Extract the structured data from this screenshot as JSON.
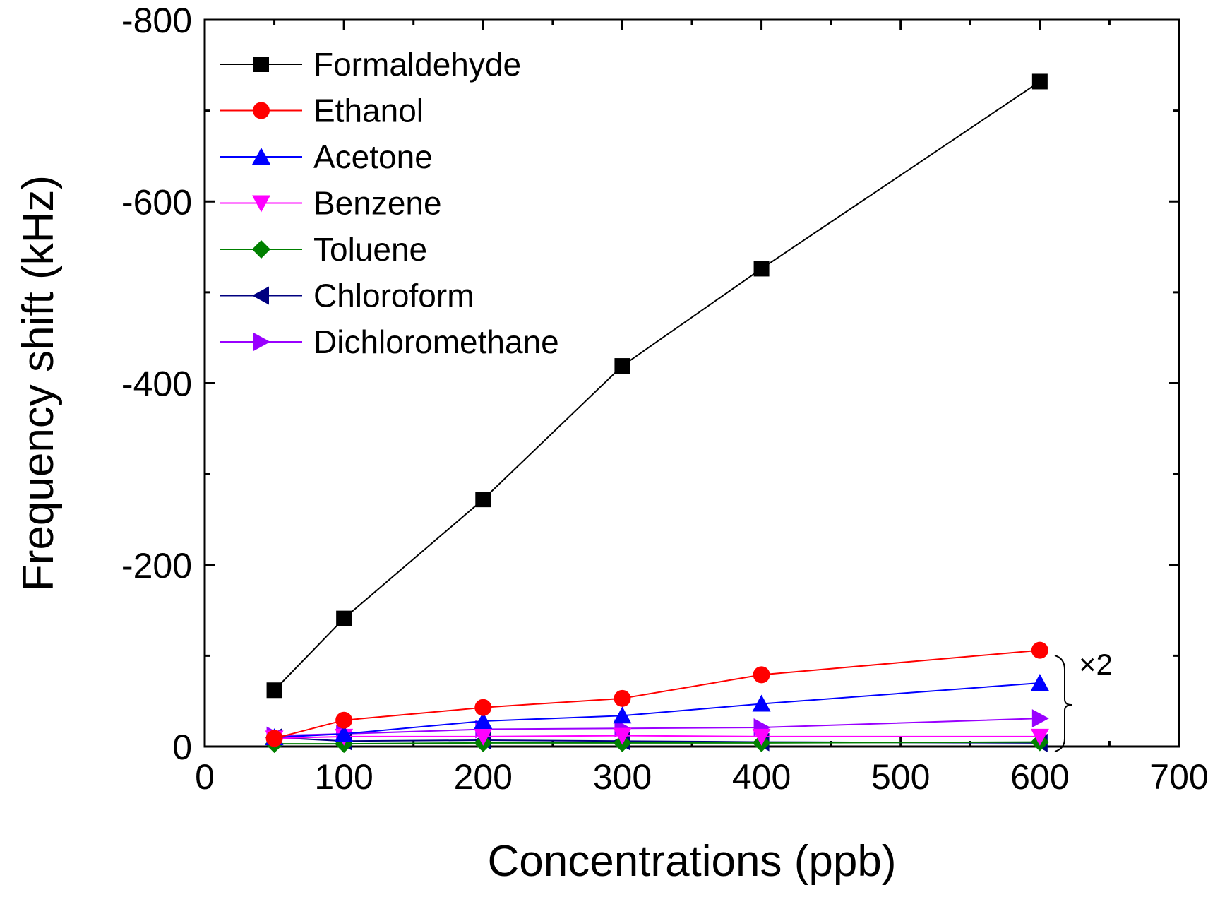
{
  "chart_data": {
    "type": "line",
    "title": "",
    "xlabel": "Concentrations (ppb)",
    "ylabel": "Frequency shift (kHz)",
    "xlim": [
      0,
      700
    ],
    "ylim": [
      0,
      -800
    ],
    "xticks": [
      0,
      100,
      200,
      300,
      400,
      500,
      600,
      700
    ],
    "yticks": [
      0,
      -200,
      -400,
      -600,
      -800
    ],
    "x": [
      50,
      100,
      200,
      300,
      400,
      600
    ],
    "grid": false,
    "legend_position": "top-left",
    "annotation": "×2",
    "series": [
      {
        "name": "Formaldehyde",
        "color": "#000000",
        "marker": "square",
        "values": [
          -62,
          -141,
          -272,
          -419,
          -526,
          -732
        ]
      },
      {
        "name": "Ethanol",
        "color": "#ff0000",
        "marker": "circle",
        "values": [
          -9,
          -29,
          -43,
          -53,
          -79,
          -106
        ]
      },
      {
        "name": "Acetone",
        "color": "#0000ff",
        "marker": "triangle-up",
        "values": [
          -10,
          -14,
          -28,
          -34,
          -47,
          -70
        ]
      },
      {
        "name": "Benzene",
        "color": "#ff00ff",
        "marker": "triangle-down",
        "values": [
          -9,
          -11,
          -11,
          -12,
          -11,
          -11
        ]
      },
      {
        "name": "Toluene",
        "color": "#008000",
        "marker": "diamond",
        "values": [
          -3,
          -3,
          -4,
          -4,
          -4,
          -5
        ]
      },
      {
        "name": "Chloroform",
        "color": "#000080",
        "marker": "triangle-left",
        "values": [
          -10,
          -6,
          -7,
          -6,
          -5,
          -4
        ]
      },
      {
        "name": "Dichloromethane",
        "color": "#9900ff",
        "marker": "triangle-right",
        "values": [
          -12,
          -14,
          -19,
          -20,
          -21,
          -31
        ]
      }
    ]
  }
}
